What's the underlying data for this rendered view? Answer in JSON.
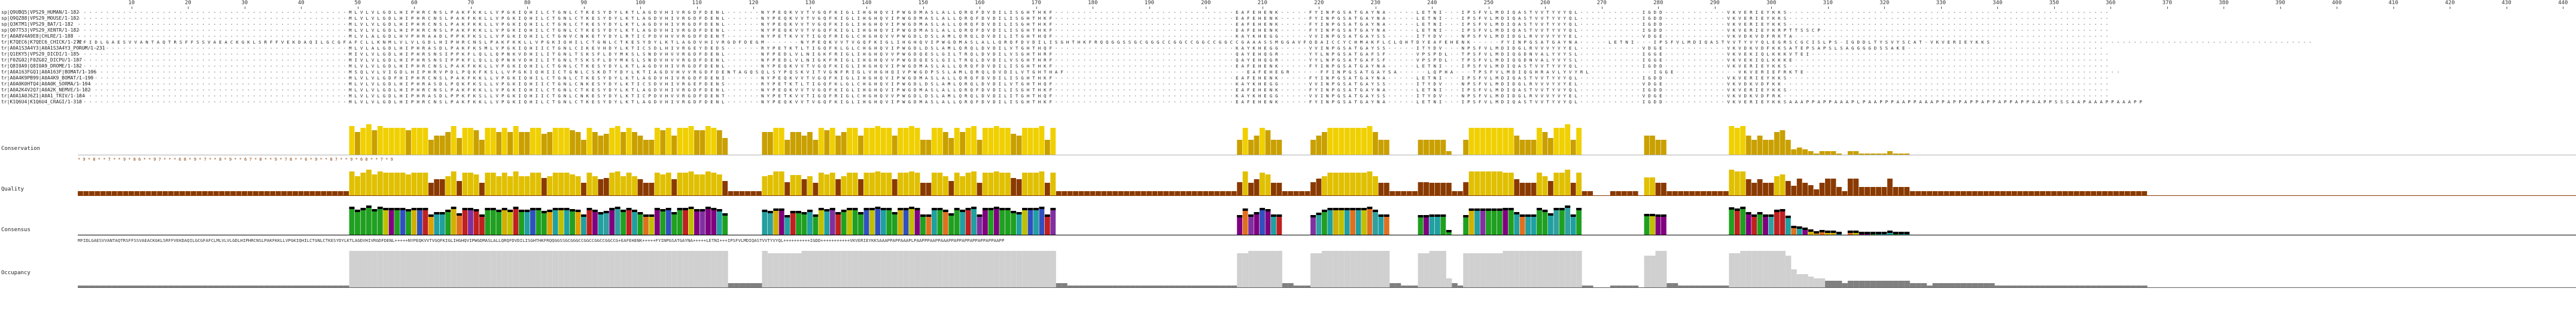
{
  "ruler": {
    "ticks": [
      "10",
      "20",
      "30",
      "40",
      "50",
      "60",
      "70",
      "80",
      "90",
      "100",
      "110",
      "120",
      "130",
      "140",
      "150",
      "160",
      "170",
      "180",
      "190",
      "200",
      "210",
      "220",
      "230",
      "240",
      "250",
      "260",
      "270",
      "280",
      "290",
      "300",
      "310",
      "320",
      "330",
      "340",
      "350",
      "360",
      "370",
      "380",
      "390",
      "400",
      "410",
      "420",
      "430",
      "440"
    ]
  },
  "sequences": [
    {
      "name": "sp|Q9UBQ5|VPS29_HUMAN/1-182",
      "seq": "------------------------------------------------MLVLVLGDLHIPHRCNSLPAKFKKLLVPGKIQHILCTGNLCTKESYDYLKTLAGDVHIVRGDFDENL------NYPEQKVVTVGQFKIGLIHGHQVIPWGDMASLALLQRQFDVDILISGHTHKF--------------------------------EAFEHENK-----FYINPGSATGAYNA-----LETNI---IPSFVLMDIQASTVVTYVYQL-----------IGDD-----------VKVERIEYKKS---------------------------------------------------------"
    },
    {
      "name": "sp|Q9QZ88|VPS29_MOUSE/1-182",
      "seq": "------------------------------------------------MLVLVLGDLHIPHRCNSLPAKFKKLLVPGKIQHILCTGNLCTKESYDYLKTLAGDVHIVRGDFDENL------NYPEQKVVTVGQFKIGLIHGHQVIPWGDMASLALLQRQFDVDILISGHTHKF--------------------------------EAFEHENK-----FYINPGSATGAYNA-----LETNI---IPSFVLMDIQASTVVTYVYQL-----------IGDD-----------VKVERIEYKKS---------------------------------------------------------"
    },
    {
      "name": "sp|Q3KTM1|VPS29_BAT/1-182",
      "seq": "------------------------------------------------MLVLVLGDLHIPHRCNSLPAKFKKLLVPGKIQHILCTGNLCTKESYDYLKTLAGDVHIVRGDFDENL------NYPEQKVVTVGQFKIGLIHGHQVIPWGDMASLALLQRQFDVDILISGHTHKF--------------------------------EAFEHENK-----FYINPGSATGAYNA-----LETNI---IPSFVLMDIQASTVVTYVYQL-----------IGDD-----------VKVERIEYKKS---------------------------------------------------------"
    },
    {
      "name": "sp|Q07T53|VPS29_XENTR/1-182",
      "seq": "------------------------------------------------MLVLVLGDLHIPHRCNSLPAKFKKLLVPGKIQHILCTGNLCTKESYDYLKTLAGDVHIVRGDFDENL------NYPEQKVVTVGQFKIGLIHGHQVIPWGDMASLALLQRQFDVDILISGHTHKF--------------------------------EAFEHENK-----FYINPGSATGAYNA-----LETNI---IPSFVLMDIQASTVVTYVYQL-----------IGDD-----------VKVERIEYKRPTTSSCP---------------------------------------------------"
    },
    {
      "name": "tr|A0A8V4A9E8|CHLRE/1-188",
      "seq": "------------------------------------------------MLVLALGDLHVPHRAADLPPKFKSLLVPGKIQHILCTGNVCNKETYDYLRTICPDVHVVRGDFDENT------NYPETKVVTIGQFRIGLCHGHQVVPWGDLDSLAMLQRQLDVDILITGHTHQF--------------------------------KAYKHEGG-----VVINPGSATGAYSS-----ITYDV---NPSFVLMDIDGLRVVVYVYEL-----------VDGE-----------VKVDKVDFRKTA--------------------------------------------------------"
    },
    {
      "name": "tr|K7QEC6|K7QEC6_CHICK/1-272",
      "seq": "MFIDLGAESVVANTAQTRSFFSSVAEACKGKLSRFFVEKDAQILGCGFAFCLLKNMLVLVLGDLHIPHRCNSLPAKFKKLLVPGKIQHILCTGNLCTKESYDYLKTLAGDVHIVRGDFDEGM------NYPEQKVVTVGQFKIGLIHGHQVIPWGDMASLALLQRQFDVDILISGHTHKFRQQGGSSGCGGGCCGGCCGGCCGGCCGAAASSMGGAVFQDAICCYCHMAKFLCLQHTDYEAFEHENK-----FYINPGSATGAYNA-----LETNI---IPSFVLMDIQASTVVTYVYQLEGRSCGCISLPS-IGDDLTYSVYSCAT-VKVERIEYKKS---------------------------------------------------------"
    },
    {
      "name": "tr|A0A1S3A4Y3|A0A1S3A4Y3_PORUM/1-231",
      "seq": "------------------------------------------------MLVLALGDLHIPHRASDLPAKFKSMLVPGKIQHIICTGNLCIKEVHDYLKTICSDLHIVRGEYDEDS------RYPETKTLTIGQFKLGLCHGHQVIPWGDLDSLAMLQRQLDVDILVTGHTHQF--------------------------------KAYKHEGG-----VVINPGSATGAYSS-----ITYDV---NPSFVLMDIDGLRVVVYVYEL-----------VDGE-----------VKVDKVDFKKSATEPSAPSLSAGGGGDSSAKE-----------------------------------"
    },
    {
      "name": "tr|Q1EKY5|VPS29_DICDI/1-185",
      "seq": "------------------------------------------------MIVLVLGDLHIPHRSNSIPPKFLQLLQPNKVDHILITGNLTSKSFLDYMKSLSNDVHVVRGDFDENL------NFPEDLVLNIGKFRIGLIHGHQVVPWGDQESLGILTRQLDVDILVSGHTHRF--------------------------------QAYEHQGR-----YYLNPGSATGAFSF-----VPSPDL--TPSFVLMDIQGDNVALYVYSL-----------IGGE-----------VKVEKIQLKKKVTEI-----------------------------------------------------"
    },
    {
      "name": "tr|F0ZG02|F0ZG02_DICPU/1-187",
      "seq": "------------------------------------------------MIVLVLGDLHIPHRSNSIPPKFLQLLQPNKVDHILITGNLTSKSFLDYMKSLSNDVHVVRGDFDENL------NFPEDLVLNIGKFRIGLIHGHQVVPWGDQESLGILTRQLDVDILVSGHTHRF--------------------------------QAYEHQGR-----YYLNPGSATGAFSF-----VPSPDL--TPSFVLMDIQGDNVALYVYSL-----------IGGE-----------VKVEKIQLKKKE--------------------------------------------------------"
    },
    {
      "name": "tr|Q8I0A9|Q8I0A9_DROME/1-182",
      "seq": "------------------------------------------------MLVLVLGDLHIPHRCNSLPAKFKKLLVPGKIQHILCTGNLCTKESYDYLKTLAGDVHIVRGDFDENL------NYPEQKVVTVGQFKIGLIHGHQVIPWGDMASLALLQRQFDVDILISGHTHKF--------------------------------EAFEHENK-----FYINPGSATGAYNA-----LETNI---IPSFVLMDIQASTVVTYVYQL-----------IGDD-----------VKVERIEYKKS---------------------------------------------------------"
    },
    {
      "name": "tr|A0A163FGQ1|A0A163F|BOMAT/1-196",
      "seq": "------------------------------------------------MSQLVLVIGDLHIPHRVPDLPQKFKSLLVPGKIQHIICTGNLCSKDTYDYLKTIAGDVHVVRGDFDENTAGQSQLSYPQSKVITVGNFRIGLVHGHQIVPWGDPSSLAMLQRQLDVDILVTGHTHAF--------------------------------EAFEHEGR-----FFINPGSATGAYSA-----LQPHA---TPSFVLMDIQGHRAVLYVYRL-----------IGGE-----------VKVERIEFRKTE--------------------------------------------------------"
    },
    {
      "name": "tr|A0A4K9PB99|A0A4K9_BOMAT/1-199",
      "seq": "------------------------------------------------MLVLVLGDFHIPHRCNSLPAKFKKLLVPGKIQHILCTGNLCTKESYDYLKTLAGDVHIVRGDFDENI------NYPEQKVVTVGQFKIGLIHGHQVIPWGDMASLALLQRQFDVDILISGHTHKF--------------------------------EAFEHENK-----FYINPGSATGAYNA-----LETNI---IPSFVLMDIQASTVVTYVYQL-----------IGDD-----------VKVERIEYKKS---------------------------------------------------------"
    },
    {
      "name": "tr|A0A0K0HTQ4|A0A0K_SORMA/1-194",
      "seq": "------------------------------------------------MLVLVLGDLHIPHRASDLPQKFKSLLVPGKIQHIICTGNLCNKESYDYLKTICSDVHIVRGEFDENS------RYPETKTLTIGQFKLGLCHGHQVIPWGDLDSLAMLQRQLDVDILVTGHTHQF--------------------------------KAYKHEGG-----VVINPGSATGAYSS-----ITYDV---NPSFVLMDIDGLRVVVYVYEL-----------VDGE-----------VKVDKVDFKK----------------------------------------------------------"
    },
    {
      "name": "tr|A0A2K4V2Q7|A0A2K_NEMVE/1-182",
      "seq": "------------------------------------------------MLVLVLGDLHIPHRCNSLPAKFKKLLVPGKIQHILCTGNLCTKESYDYLKTLAGDVHIVRGDFDENL------NYPEQKVVTVGQFKIGLIHGHQVIPWGDMASLALLQRQFDVDILISGHTHKF--------------------------------EAFEHENK-----FYINPGSATGAYNA-----LETNI---IPSFVLMDIQASTVVTYVYQL-----------IGDD-----------VKVERIEYKKS---------------------------------------------------------"
    },
    {
      "name": "tr|A0A1A0J6Z1|A0A1_TRIV/1-184",
      "seq": "------------------------------------------------MLVLVLGDLHIPHRASDLPPKFKSLLVPGKIQHIICTGNLCNKESYDYLKTICPDVHVVRGDFDENT------NYPETKVVTIGQFRIGLCHGHQVVPWGDLDSLAMLQRQLDVDILITGHTHQF--------------------------------KAYKHEGG-----VVINPGSATGAYSS-----ITYDV---NPSFVLMDIDGLRVVVYVYEL-----------VDGE-----------VKVDKVDFRK----------------------------------------------------------"
    },
    {
      "name": "tr|K1Q6U4|K1Q6U4_CRAGI/1-318",
      "seq": "------------------------------------------------MLVLVLGDLHIPHRCNSLPAKFKKLLVPGKIQHILCTGNLCTKESYDYLKTLAGDVHIVRGDFDENL------NYPEQKVVTVGQFKIGLIHGHQVIPWGDMASLALLQRQFDVDILISGHTHKF--------------------------------EAFEHENK-----FYINPGSATGAYNA-----LETNI---IPSFVLMDIQASTVVTYVYQL-----------IGDD-----------VKVERIEYKKSAAAPPAPPAAAPLPAAPPPAAPPAAAPPAPPAPPAPPAPPAPPAAPPSSSAAPAAAPPAAAPP"
    }
  ],
  "annotations": {
    "conservation": "Conservation",
    "quality": "Quality",
    "consensus": "Consensus",
    "occupancy": "Occupancy"
  },
  "conservation_digits": "* 9 * 8 * * 7 * * 9 * 8 6 * * 9 7 * * * 6 8 * 9 * 7 * * 8 * 9 * * 6 7 * 8 * * 9 * 7 8 * * 6 * 9 * * 8 7 * * 9 * 6 8 * * 7 * 9",
  "consensus_seq": "MFIDLGAESVVANTAQTRSFFSSVAEACKGKLSRFFVEKDAQILGCGFAFCLMLVLVLGDLHIPHRCNSLPAKFKKLLVPGKIQHILCTGNLCTKESYDYLKTLAGDVHIVRGDFDENL+++++NYPEQKVVTVGQFKIGLIHGHQVIPWGDMASLALLQRQFDVDILISGHTHKFRQQGGSSGCGGGCCGGCCGGCCGGCCG+EAFEHENK+++++FYINPGSATGAYNA+++++LETNI+++IPSFVLMDIQASTVVTYVYQL++++++++++IGDD+++++++++++VKVERIEYKKSAAAPPAPPAAAPLPAAPPPAAPPAAAPPAPPAPPAPPAPPAPPAAPP",
  "colors": {
    "conservation_bar": "#c9a000",
    "conservation_bar_high": "#f0d000",
    "quality_bar": "#e0c000",
    "quality_bar_low": "#8a3a00",
    "occupancy_bar": "#d0d0d0",
    "occupancy_base": "#808080"
  }
}
